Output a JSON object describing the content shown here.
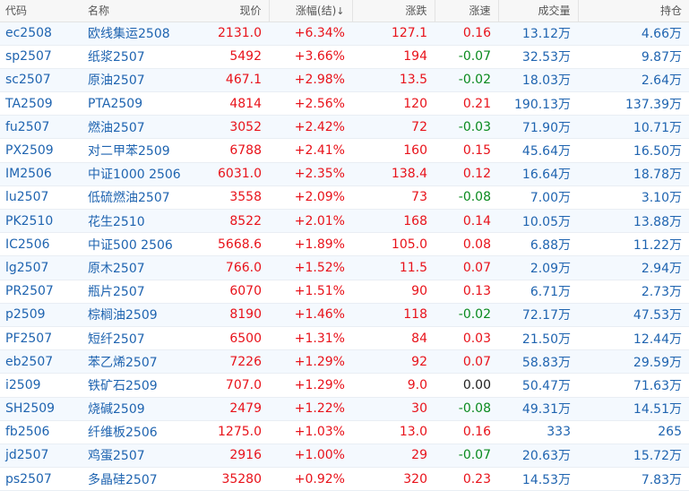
{
  "columns": {
    "code": "代码",
    "name": "名称",
    "price": "现价",
    "change_pct": "涨幅(结)",
    "sort_arrow": "↓",
    "change": "涨跌",
    "speed": "涨速",
    "volume": "成交量",
    "open_interest": "持仓"
  },
  "colors": {
    "up": "#e8121a",
    "down": "#0a8a1e",
    "link_blue": "#1f64b0"
  },
  "rows": [
    {
      "code": "ec2508",
      "name": "欧线集运2508",
      "price": "2131.0",
      "change_pct": "+6.34%",
      "change": "127.1",
      "speed": "0.16",
      "speed_dir": "up",
      "volume": "13.12万",
      "oi": "4.66万"
    },
    {
      "code": "sp2507",
      "name": "纸浆2507",
      "price": "5492",
      "change_pct": "+3.66%",
      "change": "194",
      "speed": "-0.07",
      "speed_dir": "down",
      "volume": "32.53万",
      "oi": "9.87万"
    },
    {
      "code": "sc2507",
      "name": "原油2507",
      "price": "467.1",
      "change_pct": "+2.98%",
      "change": "13.5",
      "speed": "-0.02",
      "speed_dir": "down",
      "volume": "18.03万",
      "oi": "2.64万"
    },
    {
      "code": "TA2509",
      "name": "PTA2509",
      "price": "4814",
      "change_pct": "+2.56%",
      "change": "120",
      "speed": "0.21",
      "speed_dir": "up",
      "volume": "190.13万",
      "oi": "137.39万"
    },
    {
      "code": "fu2507",
      "name": "燃油2507",
      "price": "3052",
      "change_pct": "+2.42%",
      "change": "72",
      "speed": "-0.03",
      "speed_dir": "down",
      "volume": "71.90万",
      "oi": "10.71万"
    },
    {
      "code": "PX2509",
      "name": "对二甲苯2509",
      "price": "6788",
      "change_pct": "+2.41%",
      "change": "160",
      "speed": "0.15",
      "speed_dir": "up",
      "volume": "45.64万",
      "oi": "16.50万"
    },
    {
      "code": "IM2506",
      "name": "中证1000 2506",
      "price": "6031.0",
      "change_pct": "+2.35%",
      "change": "138.4",
      "speed": "0.12",
      "speed_dir": "up",
      "volume": "16.64万",
      "oi": "18.78万"
    },
    {
      "code": "lu2507",
      "name": "低硫燃油2507",
      "price": "3558",
      "change_pct": "+2.09%",
      "change": "73",
      "speed": "-0.08",
      "speed_dir": "down",
      "volume": "7.00万",
      "oi": "3.10万"
    },
    {
      "code": "PK2510",
      "name": "花生2510",
      "price": "8522",
      "change_pct": "+2.01%",
      "change": "168",
      "speed": "0.14",
      "speed_dir": "up",
      "volume": "10.05万",
      "oi": "13.88万"
    },
    {
      "code": "IC2506",
      "name": "中证500 2506",
      "price": "5668.6",
      "change_pct": "+1.89%",
      "change": "105.0",
      "speed": "0.08",
      "speed_dir": "up",
      "volume": "6.88万",
      "oi": "11.22万"
    },
    {
      "code": "lg2507",
      "name": "原木2507",
      "price": "766.0",
      "change_pct": "+1.52%",
      "change": "11.5",
      "speed": "0.07",
      "speed_dir": "up",
      "volume": "2.09万",
      "oi": "2.94万"
    },
    {
      "code": "PR2507",
      "name": "瓶片2507",
      "price": "6070",
      "change_pct": "+1.51%",
      "change": "90",
      "speed": "0.13",
      "speed_dir": "up",
      "volume": "6.71万",
      "oi": "2.73万"
    },
    {
      "code": "p2509",
      "name": "棕榈油2509",
      "price": "8190",
      "change_pct": "+1.46%",
      "change": "118",
      "speed": "-0.02",
      "speed_dir": "down",
      "volume": "72.17万",
      "oi": "47.53万"
    },
    {
      "code": "PF2507",
      "name": "短纤2507",
      "price": "6500",
      "change_pct": "+1.31%",
      "change": "84",
      "speed": "0.03",
      "speed_dir": "up",
      "volume": "21.50万",
      "oi": "12.44万"
    },
    {
      "code": "eb2507",
      "name": "苯乙烯2507",
      "price": "7226",
      "change_pct": "+1.29%",
      "change": "92",
      "speed": "0.07",
      "speed_dir": "up",
      "volume": "58.83万",
      "oi": "29.59万"
    },
    {
      "code": "i2509",
      "name": "铁矿石2509",
      "price": "707.0",
      "change_pct": "+1.29%",
      "change": "9.0",
      "speed": "0.00",
      "speed_dir": "flat",
      "volume": "50.47万",
      "oi": "71.63万"
    },
    {
      "code": "SH2509",
      "name": "烧碱2509",
      "price": "2479",
      "change_pct": "+1.22%",
      "change": "30",
      "speed": "-0.08",
      "speed_dir": "down",
      "volume": "49.31万",
      "oi": "14.51万"
    },
    {
      "code": "fb2506",
      "name": "纤维板2506",
      "price": "1275.0",
      "change_pct": "+1.03%",
      "change": "13.0",
      "speed": "0.16",
      "speed_dir": "up",
      "volume": "333",
      "oi": "265"
    },
    {
      "code": "jd2507",
      "name": "鸡蛋2507",
      "price": "2916",
      "change_pct": "+1.00%",
      "change": "29",
      "speed": "-0.07",
      "speed_dir": "down",
      "volume": "20.63万",
      "oi": "15.72万"
    },
    {
      "code": "ps2507",
      "name": "多晶硅2507",
      "price": "35280",
      "change_pct": "+0.92%",
      "change": "320",
      "speed": "0.23",
      "speed_dir": "up",
      "volume": "14.53万",
      "oi": "7.83万"
    }
  ]
}
